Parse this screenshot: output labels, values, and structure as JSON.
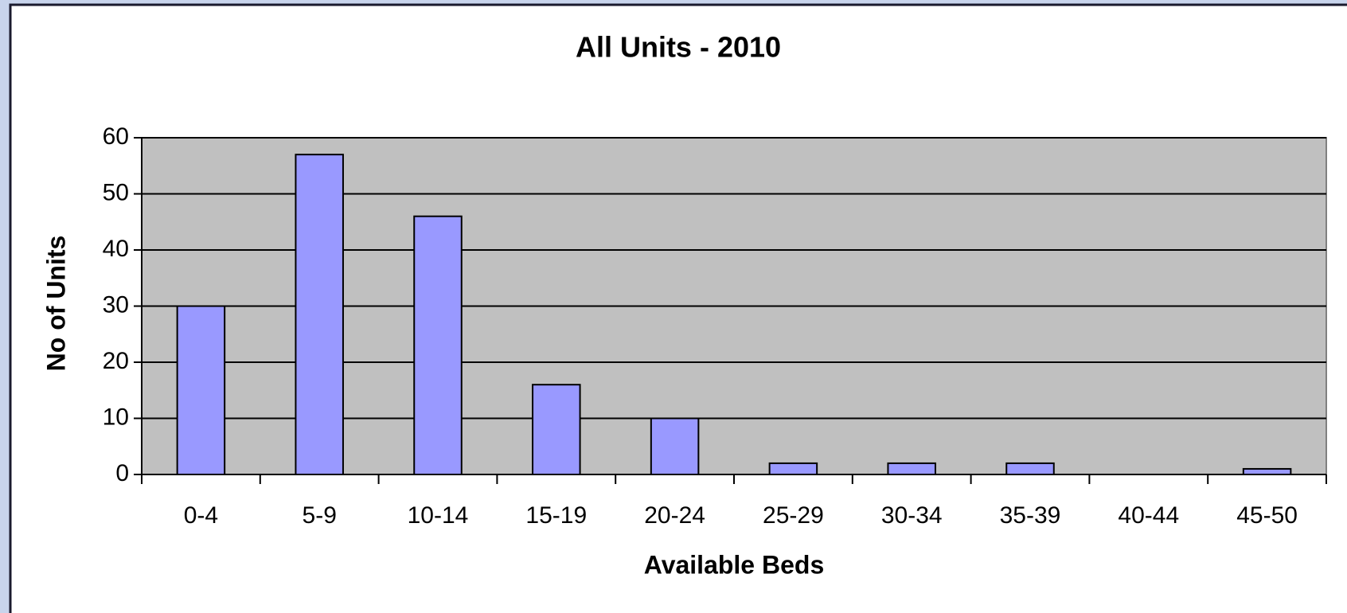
{
  "chart_data": {
    "type": "bar",
    "title": "All Units  - 2010",
    "x_label": "Available Beds",
    "y_label": "No of Units",
    "categories": [
      "0-4",
      "5-9",
      "10-14",
      "15-19",
      "20-24",
      "25-29",
      "30-34",
      "35-39",
      "40-44",
      "45-50"
    ],
    "values": [
      30,
      57,
      46,
      16,
      10,
      2,
      2,
      2,
      0,
      1
    ],
    "color": "#9999ff",
    "plot_background": "#c0c0c0",
    "ylim": [
      0,
      60
    ],
    "yticks": [
      0,
      10,
      20,
      30,
      40,
      50,
      60
    ],
    "grid": true
  }
}
